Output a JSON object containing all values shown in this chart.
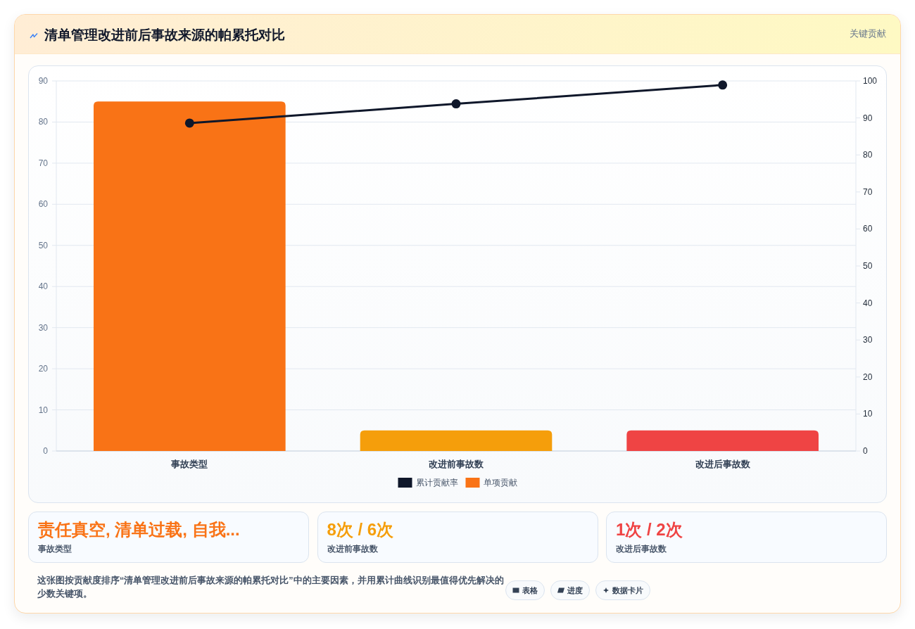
{
  "chart_data": [
    {
      "type": "bar",
      "title": "清单管理改进前后事故来源的帕累托对比",
      "categories": [
        "事故类型",
        "改进前事故数",
        "改进后事故数"
      ],
      "series": [
        {
          "name": "累计贡献率",
          "type": "line",
          "axis": "y2",
          "color": "#0f172a",
          "marker": "circle",
          "values": [
            88.6,
            93.8,
            98.9
          ]
        },
        {
          "name": "单项贡献",
          "type": "bar",
          "colors": [
            "#f97316",
            "#f59e0b",
            "#ef4444"
          ],
          "values": [
            85,
            5,
            5
          ]
        }
      ],
      "ylim": [
        0,
        90
      ],
      "yticks": [
        0,
        10,
        20,
        30,
        40,
        50,
        60,
        70,
        80,
        90
      ],
      "y2lim": [
        0,
        100
      ],
      "y2ticks": [
        0,
        10,
        20,
        30,
        40,
        50,
        60,
        70,
        80,
        90,
        100
      ],
      "grid": "y",
      "legend": "bottom",
      "annotations": [
        "关键贡献"
      ]
    },
    {
      "type": "other",
      "annotations": [
        "责任真空, 清单过载, 自我...",
        "事故类型",
        "8次 / 6次",
        "改进前事故数",
        "1次 / 2次",
        "改进后事故数",
        "这张图按贡献度排序“清单管理改进前后事故来源的帕累托对比”中的主要因素，并用累计曲线识别最值得优先解决的少数关键项。",
        "表格",
        "进度",
        "数据卡片"
      ]
    }
  ]
}
